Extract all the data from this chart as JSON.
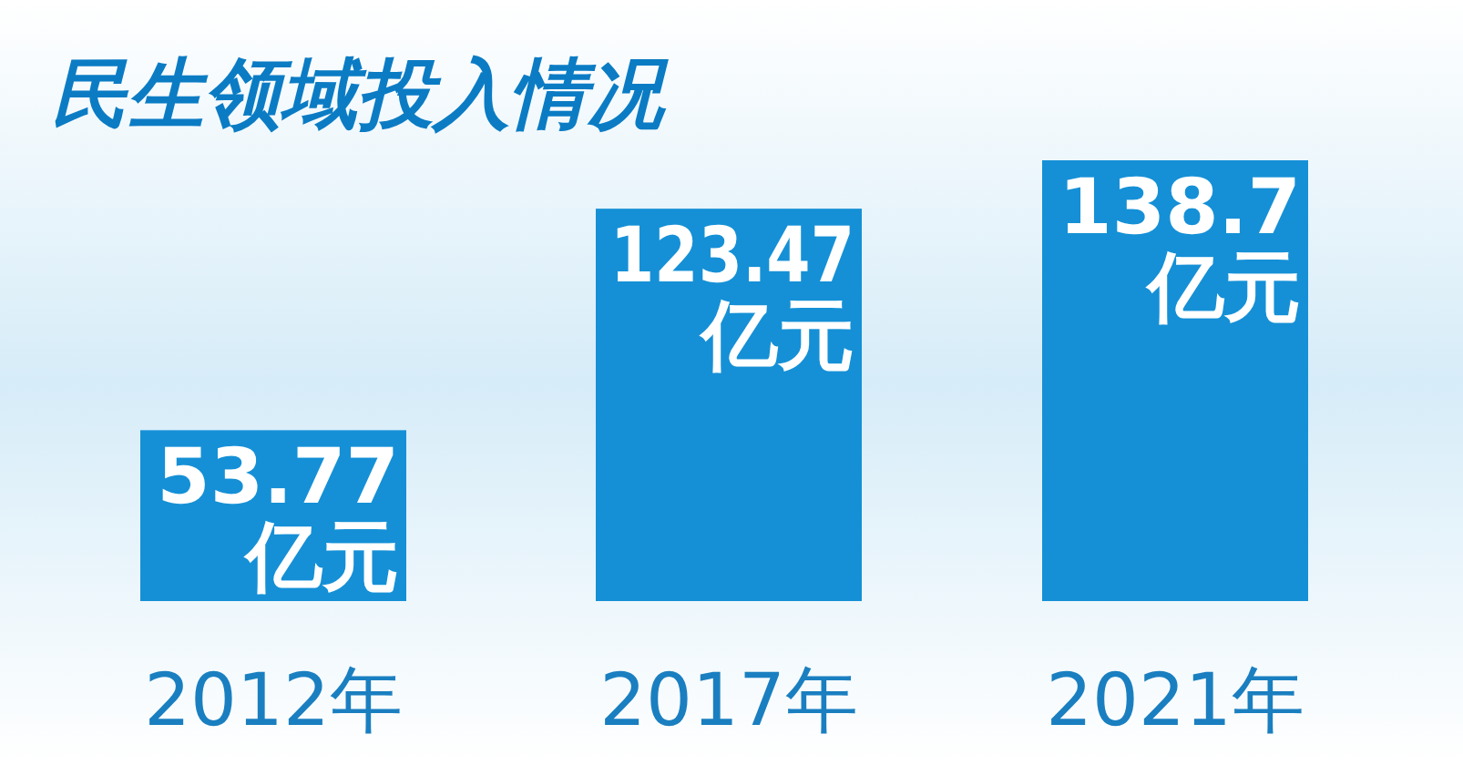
{
  "chart_data": {
    "type": "bar",
    "title": "民生领域投入情况",
    "categories": [
      "2012年",
      "2017年",
      "2021年"
    ],
    "values": [
      53.77,
      123.47,
      138.7
    ],
    "value_labels": [
      "53.77亿元",
      "123.47亿元",
      "138.7亿元"
    ],
    "color": "#1590d6"
  }
}
